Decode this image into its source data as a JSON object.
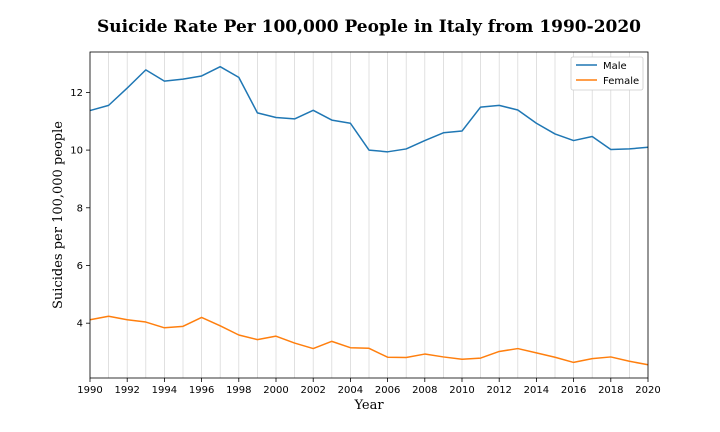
{
  "chart_data": {
    "type": "line",
    "title": "Suicide Rate Per 100,000 People in Italy from 1990-2020",
    "xlabel": "Year",
    "ylabel": "Suicides per 100,000 people",
    "xlim": [
      1990,
      2020
    ],
    "ylim": [
      2.1,
      13.4
    ],
    "x_ticks": [
      1990,
      1992,
      1994,
      1996,
      1998,
      2000,
      2002,
      2004,
      2006,
      2008,
      2010,
      2012,
      2014,
      2016,
      2018,
      2020
    ],
    "y_ticks": [
      4,
      6,
      8,
      10,
      12
    ],
    "grid": "vertical lines at every year",
    "legend_position": "top-right",
    "x": [
      1990,
      1991,
      1992,
      1993,
      1994,
      1995,
      1996,
      1997,
      1998,
      1999,
      2000,
      2001,
      2002,
      2003,
      2004,
      2005,
      2006,
      2007,
      2008,
      2009,
      2010,
      2011,
      2012,
      2013,
      2014,
      2015,
      2016,
      2017,
      2018,
      2019,
      2020
    ],
    "series": [
      {
        "name": "Male",
        "color": "#1f77b4",
        "values": [
          11.37,
          11.55,
          12.15,
          12.78,
          12.39,
          12.46,
          12.57,
          12.89,
          12.52,
          11.29,
          11.13,
          11.08,
          11.38,
          11.04,
          10.93,
          10.0,
          9.94,
          10.04,
          10.33,
          10.6,
          10.66,
          11.49,
          11.55,
          11.39,
          10.93,
          10.56,
          10.33,
          10.47,
          10.02,
          10.04,
          10.1
        ]
      },
      {
        "name": "Female",
        "color": "#ff7f0e",
        "values": [
          4.12,
          4.24,
          4.12,
          4.04,
          3.84,
          3.89,
          4.2,
          3.91,
          3.59,
          3.43,
          3.55,
          3.31,
          3.12,
          3.37,
          3.15,
          3.13,
          2.82,
          2.81,
          2.93,
          2.83,
          2.75,
          2.79,
          3.02,
          3.12,
          2.97,
          2.82,
          2.64,
          2.77,
          2.83,
          2.68,
          2.56
        ]
      }
    ]
  }
}
